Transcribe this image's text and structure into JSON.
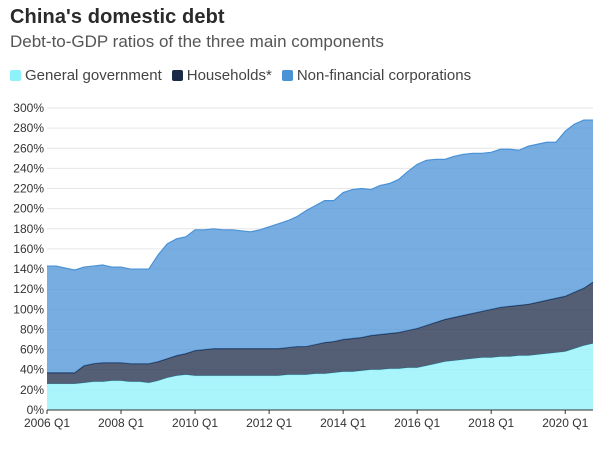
{
  "title": "China's domestic debt",
  "subtitle": "Debt-to-GDP ratios of the three main components",
  "legend": [
    {
      "label": "General government",
      "color": "#8ef2fb"
    },
    {
      "label": "Households*",
      "color": "#1b2a47"
    },
    {
      "label": "Non-financial corporations",
      "color": "#4a92d6"
    }
  ],
  "chart_data": {
    "type": "area",
    "stacked": true,
    "x_tick_labels": [
      "2006 Q1",
      "2008 Q1",
      "2010 Q1",
      "2012 Q1",
      "2014 Q1",
      "2016 Q1",
      "2018 Q1",
      "2020 Q1"
    ],
    "y_tick_labels": [
      "0%",
      "20%",
      "40%",
      "60%",
      "80%",
      "100%",
      "120%",
      "140%",
      "160%",
      "180%",
      "200%",
      "220%",
      "240%",
      "260%",
      "280%",
      "300%"
    ],
    "ylim": [
      0,
      300
    ],
    "grid": true,
    "legend_position": "top-left",
    "x": [
      "2006 Q1",
      "2006 Q2",
      "2006 Q3",
      "2006 Q4",
      "2007 Q1",
      "2007 Q2",
      "2007 Q3",
      "2007 Q4",
      "2008 Q1",
      "2008 Q2",
      "2008 Q3",
      "2008 Q4",
      "2009 Q1",
      "2009 Q2",
      "2009 Q3",
      "2009 Q4",
      "2010 Q1",
      "2010 Q2",
      "2010 Q3",
      "2010 Q4",
      "2011 Q1",
      "2011 Q2",
      "2011 Q3",
      "2011 Q4",
      "2012 Q1",
      "2012 Q2",
      "2012 Q3",
      "2012 Q4",
      "2013 Q1",
      "2013 Q2",
      "2013 Q3",
      "2013 Q4",
      "2014 Q1",
      "2014 Q2",
      "2014 Q3",
      "2014 Q4",
      "2015 Q1",
      "2015 Q2",
      "2015 Q3",
      "2015 Q4",
      "2016 Q1",
      "2016 Q2",
      "2016 Q3",
      "2016 Q4",
      "2017 Q1",
      "2017 Q2",
      "2017 Q3",
      "2017 Q4",
      "2018 Q1",
      "2018 Q2",
      "2018 Q3",
      "2018 Q4",
      "2019 Q1",
      "2019 Q2",
      "2019 Q3",
      "2019 Q4",
      "2020 Q1",
      "2020 Q2",
      "2020 Q3",
      "2020 Q4"
    ],
    "series": [
      {
        "name": "General government",
        "color": "#8ef2fb",
        "values": [
          26,
          26,
          26,
          26,
          27,
          28,
          28,
          29,
          29,
          28,
          28,
          27,
          29,
          32,
          34,
          35,
          34,
          34,
          34,
          34,
          34,
          34,
          34,
          34,
          34,
          34,
          35,
          35,
          35,
          36,
          36,
          37,
          38,
          38,
          39,
          40,
          40,
          41,
          41,
          42,
          42,
          44,
          46,
          48,
          49,
          50,
          51,
          52,
          52,
          53,
          53,
          54,
          54,
          55,
          56,
          57,
          58,
          61,
          64,
          66
        ]
      },
      {
        "name": "Households*",
        "color": "#1b2a47",
        "values": [
          11,
          11,
          11,
          11,
          17,
          18,
          19,
          18,
          18,
          18,
          18,
          19,
          19,
          19,
          20,
          21,
          25,
          26,
          27,
          27,
          27,
          27,
          27,
          27,
          27,
          27,
          27,
          28,
          28,
          29,
          31,
          31,
          32,
          33,
          33,
          34,
          35,
          35,
          36,
          37,
          39,
          40,
          41,
          42,
          43,
          44,
          45,
          46,
          48,
          49,
          50,
          50,
          51,
          52,
          53,
          54,
          55,
          56,
          57,
          61
        ]
      },
      {
        "name": "Non-financial corporations",
        "color": "#4a92d6",
        "values": [
          106,
          106,
          104,
          102,
          98,
          97,
          97,
          95,
          95,
          94,
          94,
          94,
          106,
          114,
          116,
          116,
          120,
          119,
          119,
          118,
          118,
          117,
          116,
          118,
          121,
          124,
          126,
          129,
          135,
          138,
          141,
          140,
          146,
          148,
          148,
          145,
          148,
          149,
          152,
          158,
          163,
          164,
          162,
          159,
          160,
          160,
          159,
          157,
          156,
          157,
          156,
          154,
          157,
          157,
          157,
          155,
          164,
          167,
          167,
          161
        ]
      }
    ]
  }
}
